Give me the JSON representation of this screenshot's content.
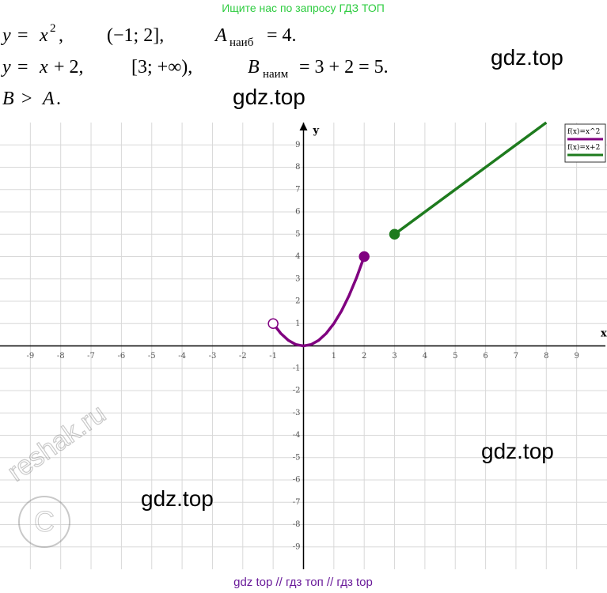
{
  "header": "Ищите нас по запросу ГДЗ ТОП",
  "solution": [
    [
      "y",
      "= ",
      "x",
      "2",
      ",",
      "(−1; 2],",
      "A",
      "наиб",
      "= 4."
    ],
    [
      "y",
      "= ",
      "x",
      "+ 2,",
      "[3; +∞),",
      "B",
      "наим",
      "= 3 + 2 = 5."
    ],
    [
      "B",
      "> ",
      "A",
      "."
    ]
  ],
  "watermarks": [
    "gdz.top",
    "gdz.top",
    "gdz.top",
    "gdz.top",
    "reshak.ru"
  ],
  "footer": "gdz top  //  гдз топ  //  гдз top",
  "chart_data": {
    "type": "line",
    "x_label": "x",
    "y_label": "y",
    "xlim": [
      -10,
      10
    ],
    "ylim": [
      -10,
      10
    ],
    "xticks": [
      -9,
      -8,
      -7,
      -6,
      -5,
      -4,
      -3,
      -2,
      -1,
      1,
      2,
      3,
      4,
      5,
      6,
      7,
      8,
      9
    ],
    "yticks": [
      -9,
      -8,
      -7,
      -6,
      -5,
      -4,
      -3,
      -2,
      -1,
      1,
      2,
      3,
      4,
      5,
      6,
      7,
      8,
      9
    ],
    "grid": true,
    "legend": "top-right",
    "series": [
      {
        "name": "f(x)=x^2",
        "color": "#800080",
        "start_marker": "open",
        "end_marker": "filled",
        "x": [
          -1,
          -0.75,
          -0.5,
          -0.25,
          0,
          0.25,
          0.5,
          0.75,
          1,
          1.25,
          1.5,
          1.75,
          2
        ],
        "values": [
          1,
          0.5625,
          0.25,
          0.0625,
          0,
          0.0625,
          0.25,
          0.5625,
          1,
          1.5625,
          2.25,
          3.0625,
          4
        ]
      },
      {
        "name": "f(x)=x+2",
        "color": "#1e7b1e",
        "start_marker": "filled",
        "x": [
          3,
          8
        ],
        "values": [
          5,
          10
        ]
      }
    ]
  }
}
